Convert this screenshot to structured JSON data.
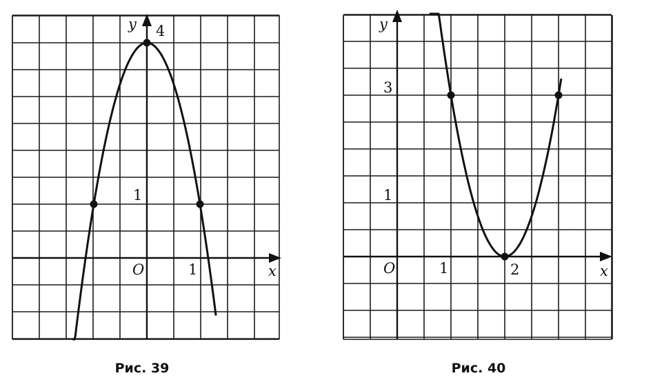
{
  "chart_data": [
    {
      "type": "line",
      "caption": "Рис. 39",
      "xlabel": "x",
      "ylabel": "y",
      "origin_label": "O",
      "tick_labels": {
        "x": [
          "1"
        ],
        "y": [
          "1",
          "4"
        ]
      },
      "xlim": [
        -2.5,
        2.5
      ],
      "ylim": [
        -3,
        8.5
      ],
      "grid": true,
      "function": "y = 4 - 3x^2 (grid cell = 0.5 on x, 0.5 on y)",
      "curve_x_range": [
        -1.4,
        1.3
      ],
      "series": [
        {
          "x": [
            -1.0,
            -0.5,
            0.0,
            0.5,
            1.0
          ],
          "y": [
            1.0,
            3.25,
            4.0,
            3.25,
            1.0
          ]
        }
      ],
      "points": [
        {
          "x": -1,
          "y": 1
        },
        {
          "x": 0,
          "y": 4
        },
        {
          "x": 1,
          "y": 1
        }
      ]
    },
    {
      "type": "line",
      "caption": "Рис. 40",
      "xlabel": "x",
      "ylabel": "y",
      "origin_label": "O",
      "tick_labels": {
        "x": [
          "1",
          "2"
        ],
        "y": [
          "1",
          "3"
        ]
      },
      "xlim": [
        -1.5,
        6
      ],
      "ylim": [
        -3,
        9
      ],
      "grid": true,
      "function": "y = 3(x - 2)^2 (grid cell = 0.5 on x, 0.5 on y)",
      "curve_x_range": [
        0.6,
        3.05
      ],
      "series": [
        {
          "x": [
            1.0,
            1.5,
            2.0,
            2.5,
            3.0
          ],
          "y": [
            3.0,
            0.75,
            0.0,
            0.75,
            3.0
          ]
        }
      ],
      "points": [
        {
          "x": 1,
          "y": 3
        },
        {
          "x": 2,
          "y": 0
        },
        {
          "x": 3,
          "y": 3
        }
      ]
    }
  ]
}
